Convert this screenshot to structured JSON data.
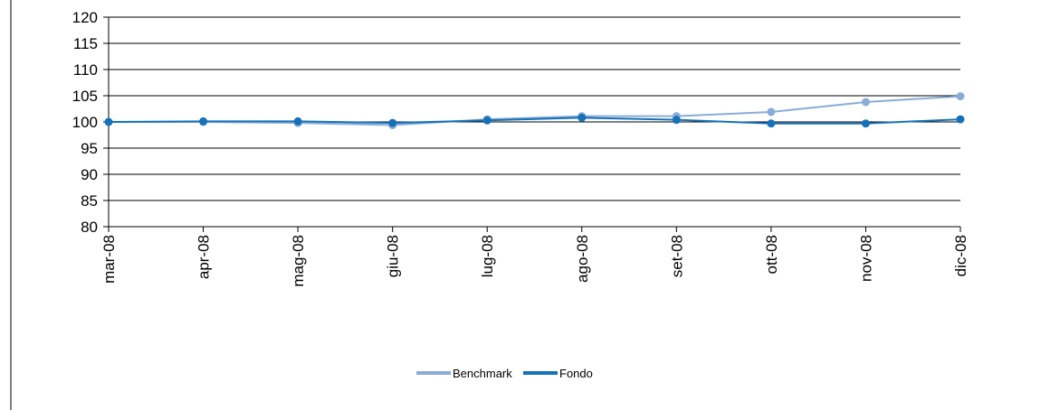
{
  "chart_data": {
    "type": "line",
    "title": "",
    "xlabel": "",
    "ylabel": "",
    "categories": [
      "mar-08",
      "apr-08",
      "mag-08",
      "giu-08",
      "lug-08",
      "ago-08",
      "set-08",
      "ott-08",
      "nov-08",
      "dic-08"
    ],
    "ylim": [
      80,
      120
    ],
    "yticks": [
      80,
      85,
      90,
      95,
      100,
      105,
      110,
      115,
      120
    ],
    "grid": true,
    "legend_position": "bottom",
    "series": [
      {
        "name": "Benchmark",
        "color": "#8aacd8",
        "values": [
          100.0,
          100.0,
          99.8,
          99.4,
          100.5,
          101.1,
          101.1,
          101.9,
          103.8,
          104.9
        ]
      },
      {
        "name": "Fondo",
        "color": "#1672b8",
        "values": [
          100.0,
          100.1,
          100.1,
          99.8,
          100.3,
          100.8,
          100.4,
          99.7,
          99.7,
          100.5
        ]
      }
    ]
  }
}
